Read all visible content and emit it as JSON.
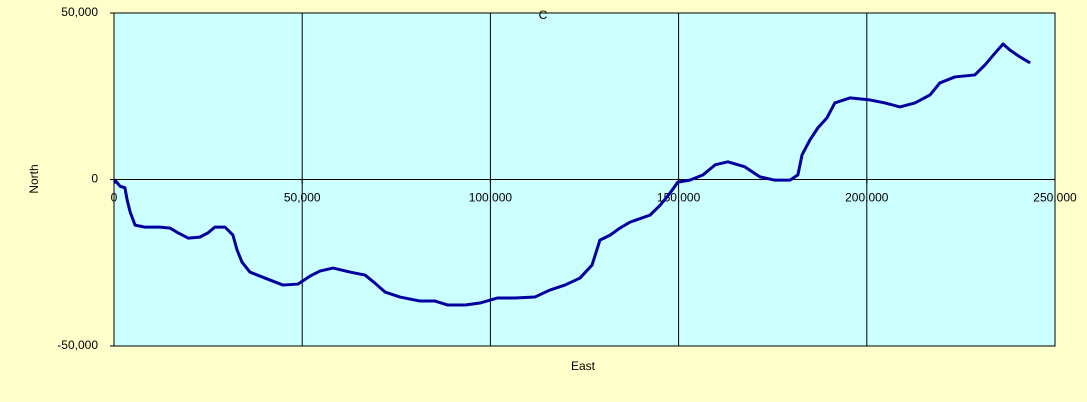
{
  "chart_data": {
    "type": "line",
    "title": "C",
    "x_label": "East",
    "y_label": "North",
    "x": [
      0,
      500,
      1600,
      2900,
      3500,
      4300,
      5600,
      8200,
      12200,
      14900,
      17000,
      19700,
      22800,
      25000,
      26800,
      29500,
      31600,
      32700,
      34000,
      36100,
      40100,
      44900,
      48900,
      52100,
      54700,
      58200,
      62700,
      66700,
      69300,
      72000,
      76000,
      81300,
      85300,
      88700,
      93300,
      97200,
      101800,
      106500,
      111800,
      115800,
      119800,
      123800,
      127000,
      129100,
      131800,
      134400,
      137100,
      142400,
      145100,
      147700,
      149800,
      153000,
      156500,
      159700,
      163100,
      167600,
      171600,
      175600,
      179600,
      181700,
      182800,
      184900,
      187000,
      189400,
      191500,
      195500,
      200800,
      204800,
      208800,
      212800,
      216800,
      219400,
      223400,
      228700,
      231400,
      234100,
      236200,
      238000,
      240700,
      243400
    ],
    "values": [
      -1000,
      -500,
      -2000,
      -2500,
      -6200,
      -9800,
      -13700,
      -14300,
      -14300,
      -14600,
      -16000,
      -17600,
      -17300,
      -16000,
      -14300,
      -14300,
      -16700,
      -21200,
      -24800,
      -27800,
      -29600,
      -31700,
      -31400,
      -29000,
      -27500,
      -26600,
      -27800,
      -28700,
      -31100,
      -33800,
      -35300,
      -36500,
      -36500,
      -37700,
      -37700,
      -37100,
      -35600,
      -35600,
      -35300,
      -33200,
      -31700,
      -29600,
      -25700,
      -18200,
      -16700,
      -14600,
      -12800,
      -10700,
      -7700,
      -4100,
      -800,
      -200,
      1400,
      4400,
      5300,
      3800,
      800,
      -200,
      -200,
      1400,
      7400,
      11900,
      15500,
      18500,
      23000,
      24500,
      23900,
      23000,
      21800,
      23000,
      25400,
      29000,
      30800,
      31400,
      34400,
      38000,
      40700,
      38900,
      36800,
      35000
    ],
    "color": "#0000a0",
    "xlim": [
      0,
      250000
    ],
    "xticks": [
      0,
      {
        "value": 50000,
        "label": "50,000"
      },
      {
        "value": 100000,
        "label": "100,000"
      },
      {
        "value": 150000,
        "label": "150,000"
      },
      {
        "value": 200000,
        "label": "200,000"
      },
      {
        "value": 250000,
        "label": "250,000"
      }
    ],
    "ylim": [
      -50000,
      50000
    ],
    "yticks": [
      {
        "value": -50000,
        "label": "-50,000"
      },
      0,
      {
        "value": 50000,
        "label": "50,000"
      }
    ],
    "grid": true
  }
}
